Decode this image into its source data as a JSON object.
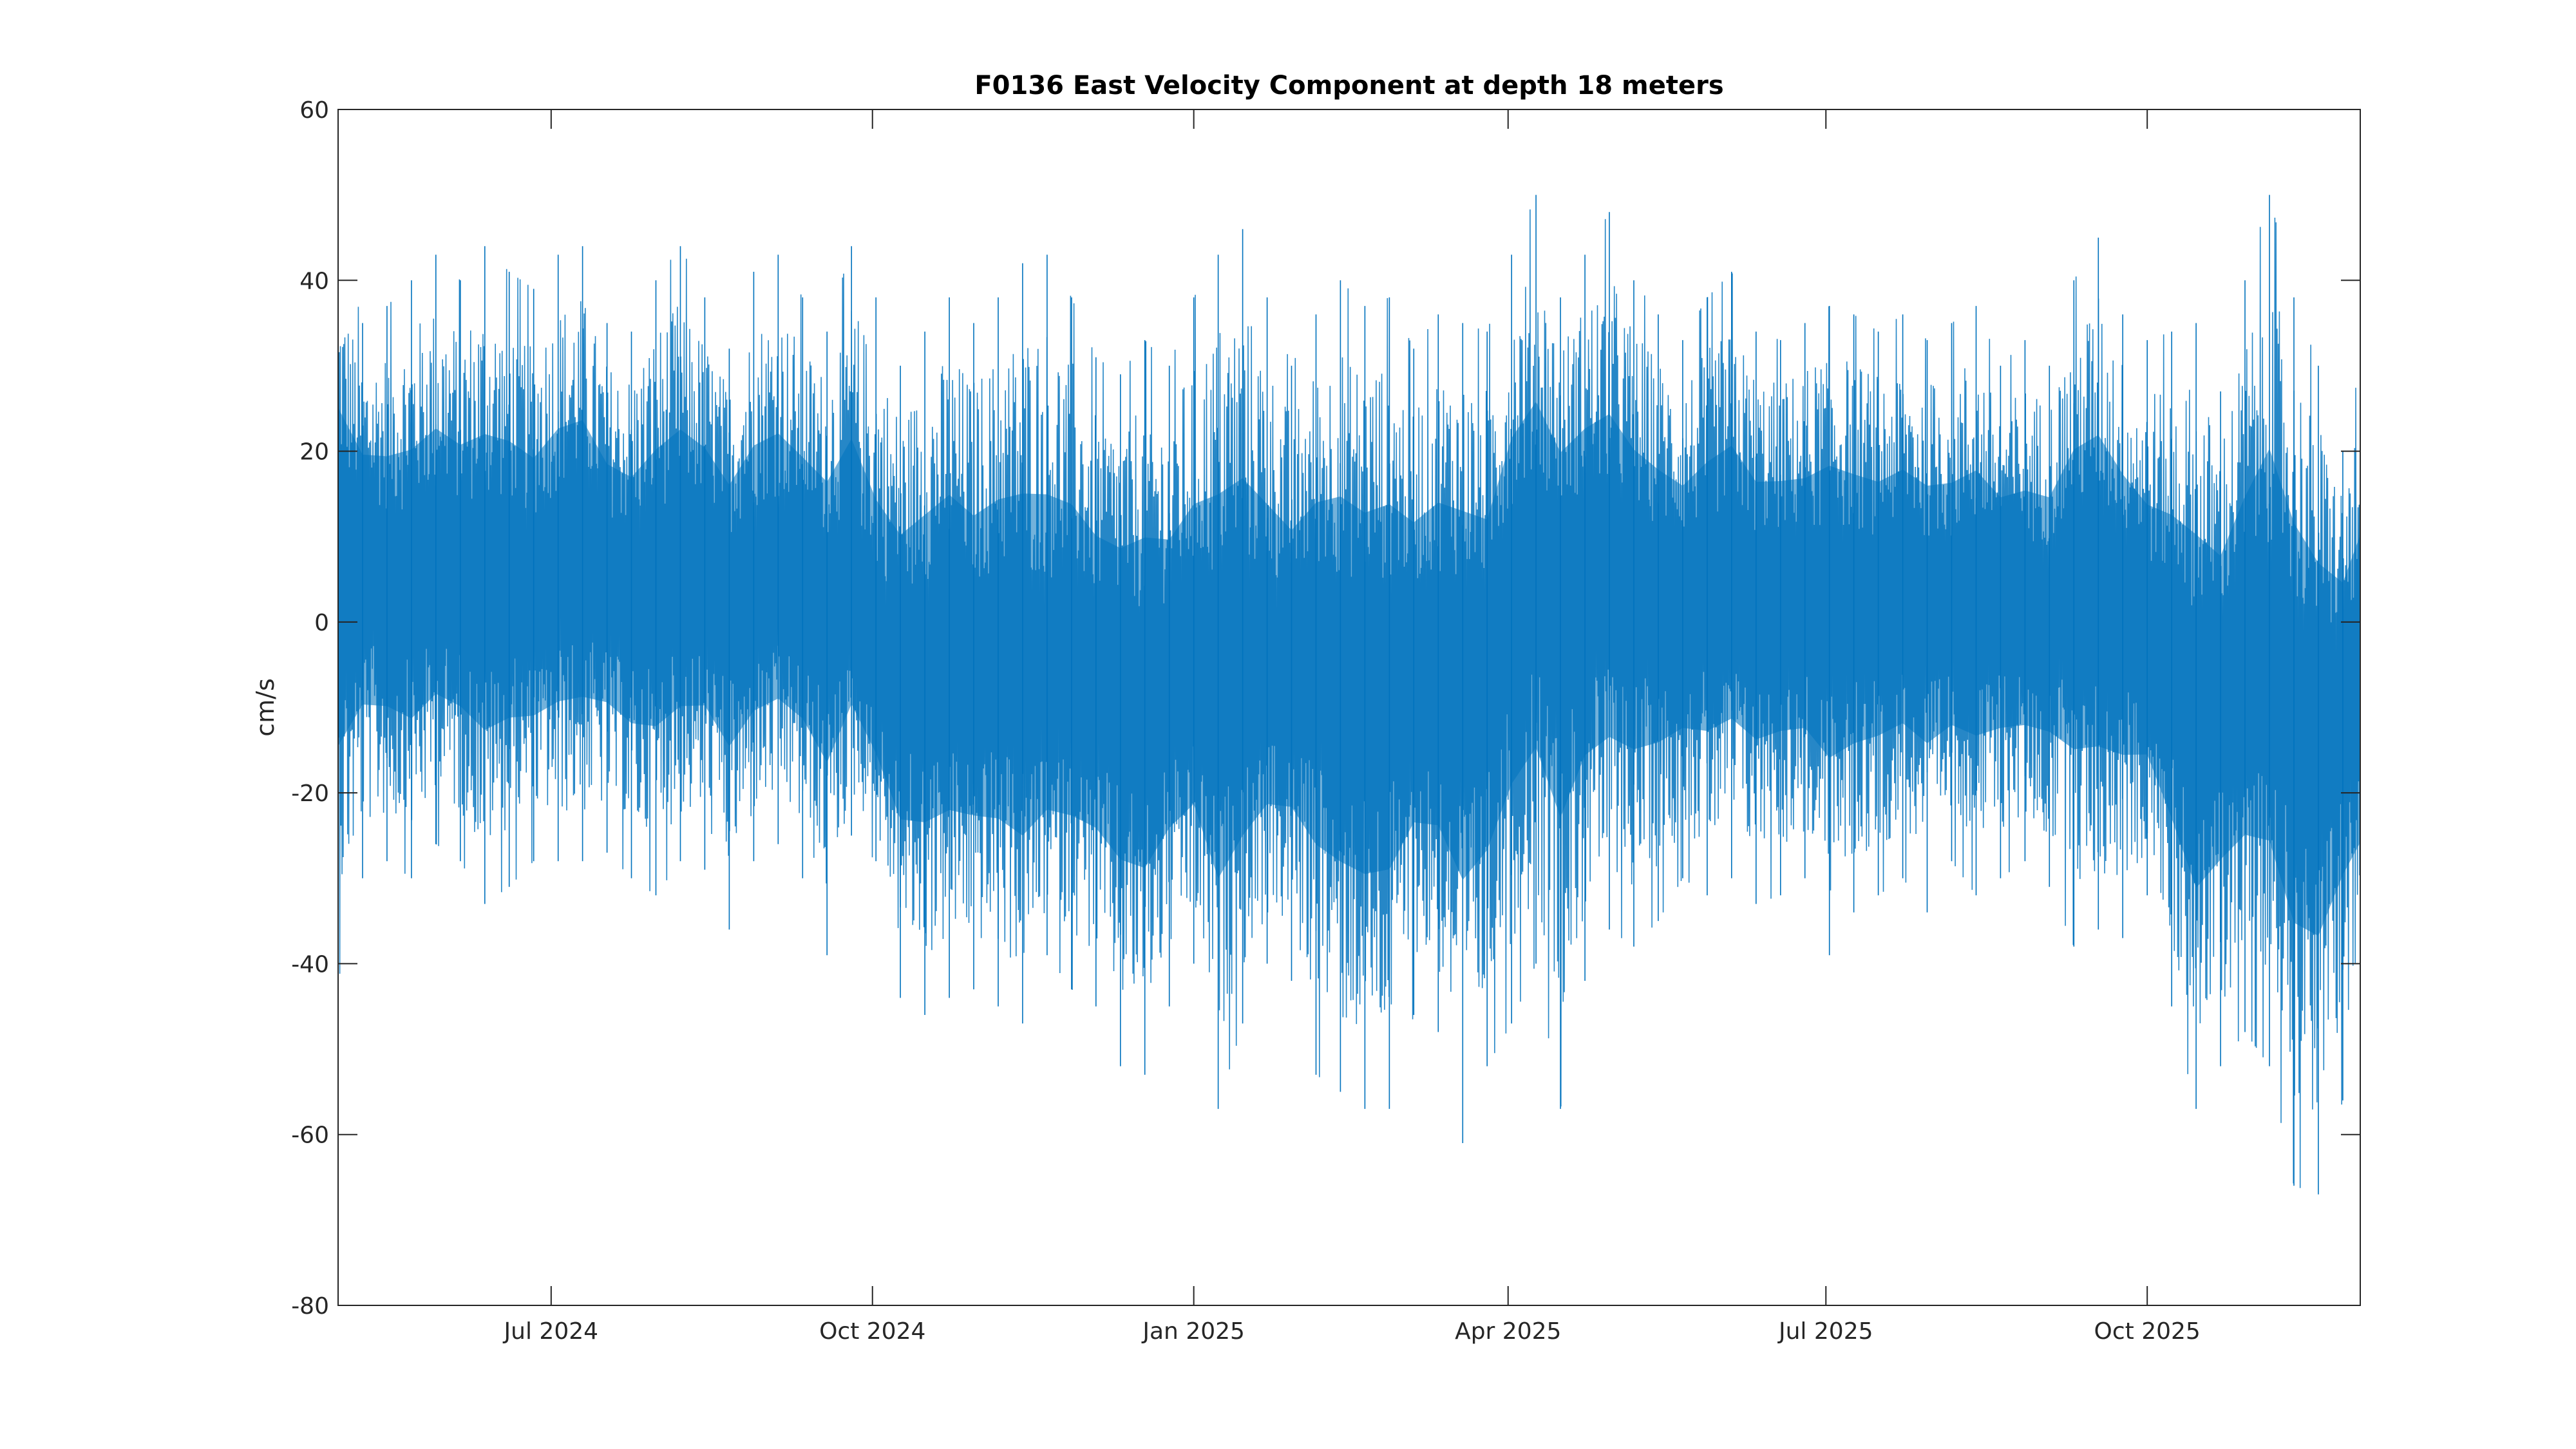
{
  "chart_data": {
    "type": "line",
    "title": "F0136 East Velocity Component at depth 18 meters",
    "xlabel": "",
    "ylabel": "cm/s",
    "xlim": [
      "2024-05-01",
      "2025-12-01"
    ],
    "ylim": [
      -80,
      60
    ],
    "x_ticks": [
      {
        "date": "2024-07-01",
        "label": "Jul 2024"
      },
      {
        "date": "2024-10-01",
        "label": "Oct 2024"
      },
      {
        "date": "2025-01-01",
        "label": "Jan 2025"
      },
      {
        "date": "2025-04-01",
        "label": "Apr 2025"
      },
      {
        "date": "2025-07-01",
        "label": "Jul 2025"
      },
      {
        "date": "2025-10-01",
        "label": "Oct 2025"
      }
    ],
    "y_ticks": [
      {
        "value": 60,
        "label": "60"
      },
      {
        "value": 40,
        "label": "40"
      },
      {
        "value": 20,
        "label": "20"
      },
      {
        "value": 0,
        "label": "0"
      },
      {
        "value": -20,
        "label": "-20"
      },
      {
        "value": -40,
        "label": "-40"
      },
      {
        "value": -60,
        "label": "-60"
      },
      {
        "value": -80,
        "label": "-80"
      }
    ],
    "grid": false,
    "line_color": "#0072BD",
    "series": [
      {
        "name": "",
        "x": [
          "2024-05-01",
          "2024-05-08",
          "2024-05-15",
          "2024-05-22",
          "2024-05-29",
          "2024-06-05",
          "2024-06-12",
          "2024-06-19",
          "2024-06-26",
          "2024-07-03",
          "2024-07-10",
          "2024-07-17",
          "2024-07-24",
          "2024-07-31",
          "2024-08-07",
          "2024-08-14",
          "2024-08-21",
          "2024-08-28",
          "2024-09-04",
          "2024-09-11",
          "2024-09-18",
          "2024-09-25",
          "2024-10-02",
          "2024-10-09",
          "2024-10-16",
          "2024-10-23",
          "2024-10-30",
          "2024-11-06",
          "2024-11-13",
          "2024-11-20",
          "2024-11-27",
          "2024-12-04",
          "2024-12-11",
          "2024-12-18",
          "2024-12-25",
          "2025-01-01",
          "2025-01-08",
          "2025-01-15",
          "2025-01-22",
          "2025-01-29",
          "2025-02-05",
          "2025-02-12",
          "2025-02-19",
          "2025-02-26",
          "2025-03-05",
          "2025-03-12",
          "2025-03-19",
          "2025-03-26",
          "2025-04-02",
          "2025-04-09",
          "2025-04-16",
          "2025-04-23",
          "2025-04-30",
          "2025-05-07",
          "2025-05-14",
          "2025-05-21",
          "2025-05-28",
          "2025-06-04",
          "2025-06-11",
          "2025-06-18",
          "2025-06-25",
          "2025-07-02",
          "2025-07-09",
          "2025-07-16",
          "2025-07-23",
          "2025-07-30",
          "2025-08-06",
          "2025-08-13",
          "2025-08-20",
          "2025-08-27",
          "2025-09-03",
          "2025-09-10",
          "2025-09-17",
          "2025-09-24",
          "2025-10-01",
          "2025-10-08",
          "2025-10-15",
          "2025-10-22",
          "2025-10-29",
          "2025-11-05",
          "2025-11-12",
          "2025-11-19",
          "2025-11-26",
          "2025-12-01"
        ],
        "max": [
          46,
          35,
          37,
          40,
          43,
          40,
          44,
          41,
          39,
          43,
          44,
          35,
          34,
          40,
          44,
          38,
          32,
          41,
          43,
          38,
          34,
          44,
          38,
          30,
          34,
          38,
          35,
          38,
          42,
          43,
          38,
          31,
          29,
          33,
          30,
          38,
          43,
          46,
          38,
          30,
          36,
          40,
          37,
          38,
          32,
          36,
          35,
          34,
          43,
          50,
          38,
          43,
          48,
          40,
          36,
          33,
          38,
          41,
          34,
          33,
          35,
          37,
          36,
          34,
          36,
          33,
          35,
          37,
          30,
          33,
          30,
          40,
          45,
          36,
          33,
          34,
          35,
          27,
          40,
          50,
          38,
          30,
          20,
          30
        ],
        "min": [
          -42,
          -30,
          -28,
          -30,
          -26,
          -28,
          -33,
          -31,
          -28,
          -28,
          -28,
          -27,
          -30,
          -32,
          -28,
          -29,
          -36,
          -28,
          -26,
          -30,
          -39,
          -25,
          -28,
          -44,
          -46,
          -44,
          -43,
          -45,
          -47,
          -39,
          -43,
          -45,
          -52,
          -53,
          -45,
          -40,
          -57,
          -47,
          -40,
          -42,
          -53,
          -55,
          -57,
          -57,
          -46,
          -48,
          -61,
          -52,
          -47,
          -40,
          -57,
          -42,
          -36,
          -38,
          -35,
          -30,
          -32,
          -30,
          -33,
          -32,
          -30,
          -39,
          -34,
          -32,
          -30,
          -34,
          -28,
          -32,
          -30,
          -28,
          -31,
          -38,
          -36,
          -37,
          -32,
          -45,
          -57,
          -52,
          -48,
          -52,
          -66,
          -67,
          -56,
          -50
        ],
        "mean": [
          8,
          7,
          5,
          4,
          6,
          5,
          4,
          5,
          3,
          6,
          7,
          5,
          3,
          4,
          5,
          6,
          3,
          4,
          5,
          4,
          2,
          3,
          -5,
          -6,
          -5,
          -4,
          -6,
          -5,
          -7,
          -8,
          -6,
          -7,
          -8,
          -9,
          -7,
          -6,
          -8,
          -7,
          -6,
          -5,
          -4,
          -6,
          -7,
          -6,
          -5,
          -4,
          -5,
          -6,
          4,
          6,
          5,
          6,
          5,
          4,
          3,
          2,
          3,
          4,
          2,
          3,
          2,
          3,
          2,
          2,
          3,
          2,
          1,
          2,
          2,
          1,
          2,
          4,
          3,
          2,
          -2,
          -5,
          -10,
          -8,
          -6,
          -4,
          -10,
          -12,
          -8,
          -6
        ]
      }
    ]
  }
}
